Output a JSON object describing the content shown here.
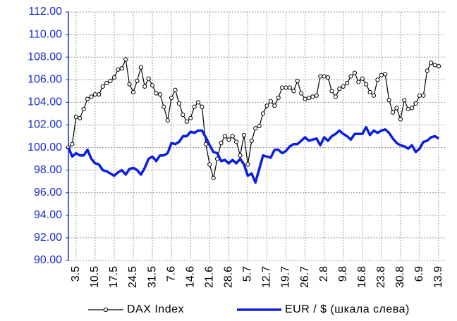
{
  "chart_data": {
    "type": "line",
    "categories": [
      null,
      null,
      "3.5",
      null,
      null,
      null,
      null,
      "10.5",
      null,
      null,
      null,
      null,
      "17.5",
      null,
      null,
      null,
      null,
      "24.5",
      null,
      null,
      null,
      null,
      "31.5",
      null,
      null,
      null,
      null,
      "7.6",
      null,
      null,
      null,
      null,
      "14.6",
      null,
      null,
      null,
      null,
      "21.6",
      null,
      null,
      null,
      null,
      "28.6",
      null,
      null,
      null,
      null,
      "5.7",
      null,
      null,
      null,
      null,
      "12.7",
      null,
      null,
      null,
      null,
      "19.7",
      null,
      null,
      null,
      null,
      "26.7",
      null,
      null,
      null,
      null,
      "2.8",
      null,
      null,
      null,
      null,
      "9.8",
      null,
      null,
      null,
      null,
      "16.8",
      null,
      null,
      null,
      null,
      "23.8",
      null,
      null,
      null,
      null,
      "30.8",
      null,
      null,
      null,
      null,
      "6.9",
      null,
      null,
      null,
      null,
      "13.9"
    ],
    "series": [
      {
        "name": "DAX Index",
        "color": "#000000",
        "marker": "circle",
        "values": [
          100.0,
          100.3,
          102.7,
          102.6,
          103.4,
          104.3,
          104.5,
          104.7,
          104.7,
          105.4,
          105.7,
          105.9,
          106.2,
          106.9,
          107.0,
          107.8,
          105.6,
          104.9,
          105.9,
          107.1,
          105.4,
          106.1,
          105.5,
          104.8,
          104.7,
          103.6,
          102.4,
          104.4,
          105.1,
          103.9,
          102.9,
          102.3,
          102.6,
          103.6,
          104.0,
          103.6,
          100.3,
          98.5,
          97.3,
          99.0,
          100.4,
          101.0,
          100.7,
          101.0,
          100.5,
          99.3,
          101.1,
          98.5,
          100.6,
          101.7,
          101.9,
          103.0,
          103.7,
          104.1,
          103.7,
          104.4,
          105.3,
          105.3,
          105.3,
          105.0,
          105.9,
          104.8,
          104.3,
          104.4,
          104.5,
          104.6,
          106.3,
          106.3,
          106.2,
          105.0,
          104.5,
          105.2,
          105.4,
          105.7,
          106.3,
          106.6,
          105.8,
          106.1,
          105.6,
          104.9,
          104.6,
          106.0,
          106.4,
          106.5,
          104.2,
          103.1,
          103.5,
          102.5,
          104.2,
          103.4,
          103.5,
          103.9,
          104.6,
          104.6,
          106.8,
          107.5,
          107.3,
          107.2
        ]
      },
      {
        "name": "EUR / $ (шкала слева)",
        "color": "#0a1fe0",
        "values": [
          100.0,
          99.2,
          99.5,
          99.3,
          99.3,
          99.8,
          99.0,
          98.6,
          98.5,
          98.0,
          97.9,
          97.7,
          97.5,
          97.8,
          98.0,
          97.6,
          98.1,
          98.2,
          98.0,
          97.6,
          98.2,
          99.0,
          99.2,
          98.8,
          99.3,
          99.3,
          99.5,
          100.4,
          100.3,
          100.5,
          101.0,
          101.0,
          101.4,
          101.3,
          101.5,
          101.5,
          100.9,
          100.2,
          99.6,
          99.5,
          98.8,
          98.9,
          98.6,
          98.9,
          98.6,
          99.0,
          98.5,
          97.5,
          97.7,
          96.9,
          98.1,
          99.3,
          99.2,
          99.1,
          99.8,
          99.8,
          99.5,
          99.7,
          100.1,
          100.3,
          100.3,
          100.6,
          100.9,
          100.6,
          100.7,
          100.8,
          100.2,
          100.9,
          100.6,
          101.0,
          101.2,
          101.5,
          101.2,
          101.0,
          100.7,
          101.2,
          101.2,
          101.2,
          101.8,
          101.1,
          101.5,
          101.3,
          101.5,
          101.6,
          101.3,
          100.8,
          100.4,
          100.2,
          100.1,
          99.9,
          100.2,
          99.6,
          99.9,
          100.5,
          100.6,
          100.9,
          101.0,
          100.8
        ]
      }
    ],
    "ylim": [
      90,
      112
    ],
    "yticks": [
      {
        "value": 90,
        "label": "90.00"
      },
      {
        "value": 92,
        "label": "92.00"
      },
      {
        "value": 94,
        "label": "94.00"
      },
      {
        "value": 96,
        "label": "96.00"
      },
      {
        "value": 98,
        "label": "98.00"
      },
      {
        "value": 100,
        "label": "100.00"
      },
      {
        "value": 102,
        "label": "102.00"
      },
      {
        "value": 104,
        "label": "104.00"
      },
      {
        "value": 106,
        "label": "106.00"
      },
      {
        "value": 108,
        "label": "108.00"
      },
      {
        "value": 110,
        "label": "110.00"
      },
      {
        "value": 112,
        "label": "112.00"
      }
    ],
    "grid": true,
    "legend": "bottom",
    "axis_color": "#1a2ec8"
  }
}
